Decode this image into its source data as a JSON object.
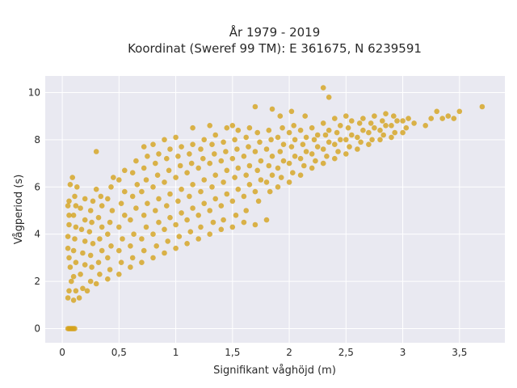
{
  "chart_data": {
    "type": "scatter",
    "title_lines": [
      "År 1979 - 2019",
      "Koordinat (Sweref 99 TM): E 361675, N 6239591"
    ],
    "xlabel": "Signifikant våghöjd (m)",
    "ylabel": "Vågperiod (s)",
    "xlim": [
      -0.15,
      3.9
    ],
    "ylim": [
      -0.6,
      10.7
    ],
    "x_ticks": [
      {
        "value": 0,
        "label": "0"
      },
      {
        "value": 0.5,
        "label": "0,5"
      },
      {
        "value": 1,
        "label": "1"
      },
      {
        "value": 1.5,
        "label": "1,5"
      },
      {
        "value": 2,
        "label": "2"
      },
      {
        "value": 2.5,
        "label": "2,5"
      },
      {
        "value": 3,
        "label": "3"
      },
      {
        "value": 3.5,
        "label": "3,5"
      }
    ],
    "y_ticks": [
      {
        "value": 0,
        "label": "0"
      },
      {
        "value": 2,
        "label": "2"
      },
      {
        "value": 4,
        "label": "4"
      },
      {
        "value": 6,
        "label": "6"
      },
      {
        "value": 8,
        "label": "8"
      },
      {
        "value": 10,
        "label": "10"
      }
    ],
    "grid": true,
    "legend": "none",
    "colors": {
      "marker": "#d4a21d",
      "plot_bg": "#e9e9f1",
      "grid": "#ffffff"
    },
    "series": [
      {
        "values_xy": [
          [
            0.05,
            0.0
          ],
          [
            0.06,
            0.0
          ],
          [
            0.07,
            0.0
          ],
          [
            0.08,
            0.0
          ],
          [
            0.09,
            0.0
          ],
          [
            0.1,
            0.0
          ],
          [
            0.11,
            0.0
          ],
          [
            0.05,
            1.3
          ],
          [
            0.06,
            1.6
          ],
          [
            0.08,
            2.0
          ],
          [
            0.07,
            2.6
          ],
          [
            0.06,
            3.0
          ],
          [
            0.05,
            3.4
          ],
          [
            0.05,
            3.9
          ],
          [
            0.06,
            4.4
          ],
          [
            0.06,
            4.8
          ],
          [
            0.05,
            5.2
          ],
          [
            0.06,
            5.4
          ],
          [
            0.07,
            6.1
          ],
          [
            0.09,
            6.4
          ],
          [
            0.1,
            1.2
          ],
          [
            0.12,
            1.6
          ],
          [
            0.1,
            2.2
          ],
          [
            0.12,
            2.8
          ],
          [
            0.1,
            3.3
          ],
          [
            0.11,
            3.8
          ],
          [
            0.12,
            4.3
          ],
          [
            0.1,
            4.8
          ],
          [
            0.12,
            5.2
          ],
          [
            0.11,
            5.6
          ],
          [
            0.13,
            6.0
          ],
          [
            0.15,
            1.3
          ],
          [
            0.18,
            1.7
          ],
          [
            0.16,
            2.3
          ],
          [
            0.2,
            2.7
          ],
          [
            0.18,
            3.2
          ],
          [
            0.2,
            3.7
          ],
          [
            0.17,
            4.2
          ],
          [
            0.2,
            4.6
          ],
          [
            0.16,
            5.1
          ],
          [
            0.2,
            5.5
          ],
          [
            0.22,
            1.6
          ],
          [
            0.25,
            2.0
          ],
          [
            0.26,
            2.6
          ],
          [
            0.25,
            3.1
          ],
          [
            0.27,
            3.6
          ],
          [
            0.24,
            4.1
          ],
          [
            0.26,
            4.5
          ],
          [
            0.25,
            5.0
          ],
          [
            0.27,
            5.4
          ],
          [
            0.3,
            5.9
          ],
          [
            0.3,
            1.9
          ],
          [
            0.33,
            2.3
          ],
          [
            0.32,
            2.8
          ],
          [
            0.35,
            3.3
          ],
          [
            0.33,
            3.8
          ],
          [
            0.35,
            4.3
          ],
          [
            0.32,
            4.7
          ],
          [
            0.35,
            5.2
          ],
          [
            0.34,
            5.6
          ],
          [
            0.3,
            7.5
          ],
          [
            0.4,
            2.1
          ],
          [
            0.42,
            2.5
          ],
          [
            0.4,
            3.0
          ],
          [
            0.43,
            3.5
          ],
          [
            0.4,
            4.0
          ],
          [
            0.42,
            4.5
          ],
          [
            0.44,
            5.0
          ],
          [
            0.4,
            5.5
          ],
          [
            0.43,
            6.0
          ],
          [
            0.45,
            6.4
          ],
          [
            0.5,
            2.3
          ],
          [
            0.52,
            2.8
          ],
          [
            0.5,
            3.3
          ],
          [
            0.53,
            3.8
          ],
          [
            0.5,
            4.3
          ],
          [
            0.55,
            4.8
          ],
          [
            0.52,
            5.3
          ],
          [
            0.55,
            5.8
          ],
          [
            0.5,
            6.3
          ],
          [
            0.55,
            6.7
          ],
          [
            0.6,
            2.6
          ],
          [
            0.62,
            3.0
          ],
          [
            0.6,
            3.5
          ],
          [
            0.63,
            4.0
          ],
          [
            0.6,
            4.6
          ],
          [
            0.65,
            5.1
          ],
          [
            0.62,
            5.6
          ],
          [
            0.66,
            6.1
          ],
          [
            0.62,
            6.6
          ],
          [
            0.65,
            7.1
          ],
          [
            0.7,
            2.8
          ],
          [
            0.72,
            3.3
          ],
          [
            0.7,
            3.8
          ],
          [
            0.74,
            4.3
          ],
          [
            0.72,
            4.8
          ],
          [
            0.75,
            5.3
          ],
          [
            0.7,
            5.8
          ],
          [
            0.74,
            6.3
          ],
          [
            0.72,
            6.8
          ],
          [
            0.75,
            7.3
          ],
          [
            0.72,
            7.7
          ],
          [
            0.8,
            3.0
          ],
          [
            0.83,
            3.5
          ],
          [
            0.8,
            4.0
          ],
          [
            0.85,
            4.5
          ],
          [
            0.82,
            5.0
          ],
          [
            0.85,
            5.5
          ],
          [
            0.8,
            6.0
          ],
          [
            0.84,
            6.5
          ],
          [
            0.82,
            7.0
          ],
          [
            0.85,
            7.4
          ],
          [
            0.8,
            7.8
          ],
          [
            0.9,
            3.2
          ],
          [
            0.93,
            3.7
          ],
          [
            0.9,
            4.2
          ],
          [
            0.95,
            4.7
          ],
          [
            0.92,
            5.2
          ],
          [
            0.95,
            5.7
          ],
          [
            0.9,
            6.2
          ],
          [
            0.94,
            6.7
          ],
          [
            0.92,
            7.2
          ],
          [
            0.95,
            7.6
          ],
          [
            0.9,
            8.0
          ],
          [
            1.0,
            3.4
          ],
          [
            1.03,
            3.9
          ],
          [
            1.0,
            4.4
          ],
          [
            1.05,
            4.9
          ],
          [
            1.02,
            5.4
          ],
          [
            1.05,
            5.9
          ],
          [
            1.0,
            6.4
          ],
          [
            1.04,
            6.9
          ],
          [
            1.02,
            7.3
          ],
          [
            1.05,
            7.7
          ],
          [
            1.0,
            8.1
          ],
          [
            1.1,
            3.6
          ],
          [
            1.13,
            4.1
          ],
          [
            1.1,
            4.6
          ],
          [
            1.15,
            5.1
          ],
          [
            1.12,
            5.6
          ],
          [
            1.15,
            6.1
          ],
          [
            1.1,
            6.6
          ],
          [
            1.14,
            7.0
          ],
          [
            1.12,
            7.4
          ],
          [
            1.15,
            7.8
          ],
          [
            1.15,
            8.5
          ],
          [
            1.2,
            3.8
          ],
          [
            1.22,
            4.3
          ],
          [
            1.2,
            4.8
          ],
          [
            1.25,
            5.3
          ],
          [
            1.22,
            5.8
          ],
          [
            1.25,
            6.3
          ],
          [
            1.2,
            6.8
          ],
          [
            1.24,
            7.2
          ],
          [
            1.22,
            7.6
          ],
          [
            1.25,
            8.0
          ],
          [
            1.3,
            4.0
          ],
          [
            1.33,
            4.5
          ],
          [
            1.3,
            5.0
          ],
          [
            1.35,
            5.5
          ],
          [
            1.32,
            6.0
          ],
          [
            1.35,
            6.5
          ],
          [
            1.3,
            7.0
          ],
          [
            1.34,
            7.4
          ],
          [
            1.32,
            7.8
          ],
          [
            1.35,
            8.2
          ],
          [
            1.3,
            8.6
          ],
          [
            1.4,
            4.2
          ],
          [
            1.42,
            4.6
          ],
          [
            1.4,
            5.2
          ],
          [
            1.45,
            5.7
          ],
          [
            1.42,
            6.2
          ],
          [
            1.45,
            6.7
          ],
          [
            1.4,
            7.1
          ],
          [
            1.44,
            7.5
          ],
          [
            1.42,
            7.9
          ],
          [
            1.45,
            8.5
          ],
          [
            1.5,
            4.3
          ],
          [
            1.53,
            4.8
          ],
          [
            1.5,
            5.4
          ],
          [
            1.55,
            5.9
          ],
          [
            1.52,
            6.4
          ],
          [
            1.55,
            6.8
          ],
          [
            1.5,
            7.2
          ],
          [
            1.54,
            7.6
          ],
          [
            1.52,
            8.0
          ],
          [
            1.55,
            8.4
          ],
          [
            1.5,
            8.6
          ],
          [
            1.6,
            4.5
          ],
          [
            1.62,
            5.0
          ],
          [
            1.6,
            5.6
          ],
          [
            1.65,
            6.1
          ],
          [
            1.62,
            6.5
          ],
          [
            1.65,
            6.9
          ],
          [
            1.6,
            7.3
          ],
          [
            1.64,
            7.7
          ],
          [
            1.62,
            8.1
          ],
          [
            1.65,
            8.5
          ],
          [
            1.7,
            4.4
          ],
          [
            1.73,
            5.4
          ],
          [
            1.7,
            5.8
          ],
          [
            1.75,
            6.3
          ],
          [
            1.72,
            6.7
          ],
          [
            1.75,
            7.1
          ],
          [
            1.7,
            7.5
          ],
          [
            1.74,
            7.9
          ],
          [
            1.72,
            8.3
          ],
          [
            1.7,
            9.4
          ],
          [
            1.8,
            4.6
          ],
          [
            1.83,
            5.8
          ],
          [
            1.8,
            6.2
          ],
          [
            1.85,
            6.5
          ],
          [
            1.82,
            6.9
          ],
          [
            1.85,
            7.3
          ],
          [
            1.8,
            7.6
          ],
          [
            1.84,
            8.0
          ],
          [
            1.82,
            8.4
          ],
          [
            1.85,
            9.3
          ],
          [
            1.9,
            6.0
          ],
          [
            1.93,
            6.4
          ],
          [
            1.9,
            6.8
          ],
          [
            1.95,
            7.1
          ],
          [
            1.92,
            7.5
          ],
          [
            1.95,
            7.8
          ],
          [
            1.9,
            8.1
          ],
          [
            1.94,
            8.5
          ],
          [
            1.92,
            9.0
          ],
          [
            2.0,
            6.2
          ],
          [
            2.03,
            6.6
          ],
          [
            2.0,
            7.0
          ],
          [
            2.05,
            7.3
          ],
          [
            2.02,
            7.7
          ],
          [
            2.05,
            8.0
          ],
          [
            2.0,
            8.3
          ],
          [
            2.04,
            8.6
          ],
          [
            2.02,
            9.2
          ],
          [
            2.1,
            6.5
          ],
          [
            2.13,
            6.9
          ],
          [
            2.1,
            7.2
          ],
          [
            2.15,
            7.5
          ],
          [
            2.12,
            7.8
          ],
          [
            2.15,
            8.1
          ],
          [
            2.1,
            8.4
          ],
          [
            2.14,
            9.0
          ],
          [
            2.2,
            6.8
          ],
          [
            2.23,
            7.1
          ],
          [
            2.2,
            7.4
          ],
          [
            2.25,
            7.7
          ],
          [
            2.22,
            8.0
          ],
          [
            2.25,
            8.2
          ],
          [
            2.2,
            8.5
          ],
          [
            2.3,
            10.2
          ],
          [
            2.35,
            9.8
          ],
          [
            2.3,
            7.0
          ],
          [
            2.33,
            7.3
          ],
          [
            2.3,
            7.6
          ],
          [
            2.35,
            7.9
          ],
          [
            2.32,
            8.2
          ],
          [
            2.35,
            8.4
          ],
          [
            2.3,
            8.7
          ],
          [
            2.4,
            7.2
          ],
          [
            2.43,
            7.5
          ],
          [
            2.4,
            7.8
          ],
          [
            2.45,
            8.0
          ],
          [
            2.42,
            8.3
          ],
          [
            2.45,
            8.6
          ],
          [
            2.4,
            8.9
          ],
          [
            2.5,
            7.4
          ],
          [
            2.53,
            7.7
          ],
          [
            2.5,
            8.0
          ],
          [
            2.55,
            8.2
          ],
          [
            2.52,
            8.5
          ],
          [
            2.55,
            8.8
          ],
          [
            2.5,
            9.0
          ],
          [
            2.6,
            7.6
          ],
          [
            2.63,
            7.9
          ],
          [
            2.6,
            8.1
          ],
          [
            2.65,
            8.4
          ],
          [
            2.62,
            8.7
          ],
          [
            2.65,
            8.9
          ],
          [
            2.7,
            7.8
          ],
          [
            2.73,
            8.0
          ],
          [
            2.7,
            8.3
          ],
          [
            2.75,
            8.5
          ],
          [
            2.72,
            8.7
          ],
          [
            2.75,
            9.0
          ],
          [
            2.8,
            8.0
          ],
          [
            2.83,
            8.2
          ],
          [
            2.8,
            8.4
          ],
          [
            2.85,
            8.6
          ],
          [
            2.82,
            8.8
          ],
          [
            2.85,
            9.1
          ],
          [
            2.9,
            8.1
          ],
          [
            2.93,
            8.3
          ],
          [
            2.9,
            8.6
          ],
          [
            2.95,
            8.8
          ],
          [
            2.92,
            9.0
          ],
          [
            3.0,
            8.3
          ],
          [
            3.03,
            8.5
          ],
          [
            3.0,
            8.8
          ],
          [
            3.05,
            8.9
          ],
          [
            3.1,
            8.7
          ],
          [
            3.2,
            8.6
          ],
          [
            3.25,
            8.9
          ],
          [
            3.3,
            9.2
          ],
          [
            3.35,
            8.9
          ],
          [
            3.4,
            9.0
          ],
          [
            3.45,
            8.9
          ],
          [
            3.5,
            9.2
          ],
          [
            3.7,
            9.4
          ]
        ]
      }
    ]
  }
}
